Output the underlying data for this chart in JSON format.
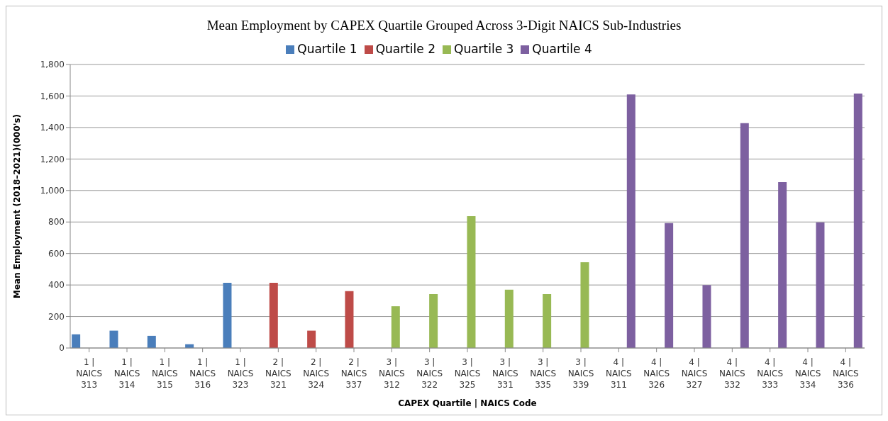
{
  "chart_data": {
    "type": "bar",
    "title": "Mean Employment by CAPEX Quartile Grouped Across 3-Digit NAICS Sub-Industries",
    "xlabel": "CAPEX Quartile | NAICS Code",
    "ylabel": "Mean Employment (2018–2021)(000's)",
    "categories": [
      "1 | NAICS 313",
      "1 | NAICS 314",
      "1 | NAICS 315",
      "1 | NAICS 316",
      "1 | NAICS 323",
      "2 | NAICS 321",
      "2 | NAICS 324",
      "2 | NAICS 337",
      "3 | NAICS 312",
      "3 | NAICS 322",
      "3 | NAICS 325",
      "3 | NAICS 331",
      "3 | NAICS 335",
      "3 | NAICS 339",
      "4 | NAICS 311",
      "4 | NAICS 326",
      "4 | NAICS 327",
      "4 | NAICS 332",
      "4 | NAICS 333",
      "4 | NAICS 334",
      "4 | NAICS 336"
    ],
    "series": [
      {
        "name": "Quartile 1",
        "color": "#4a7ebb",
        "values": [
          87,
          110,
          77,
          24,
          414,
          null,
          null,
          null,
          null,
          null,
          null,
          null,
          null,
          null,
          null,
          null,
          null,
          null,
          null,
          null,
          null
        ]
      },
      {
        "name": "Quartile 2",
        "color": "#be4b48",
        "values": [
          null,
          null,
          null,
          null,
          null,
          414,
          110,
          361,
          null,
          null,
          null,
          null,
          null,
          null,
          null,
          null,
          null,
          null,
          null,
          null,
          null
        ]
      },
      {
        "name": "Quartile 3",
        "color": "#98b954",
        "values": [
          null,
          null,
          null,
          null,
          null,
          null,
          null,
          null,
          265,
          342,
          837,
          370,
          342,
          544,
          null,
          null,
          null,
          null,
          null,
          null,
          null
        ]
      },
      {
        "name": "Quartile 4",
        "color": "#7d60a0",
        "values": [
          null,
          null,
          null,
          null,
          null,
          null,
          null,
          null,
          null,
          null,
          null,
          null,
          null,
          null,
          1610,
          793,
          399,
          1428,
          1053,
          798,
          1615
        ]
      }
    ],
    "ylim": [
      0,
      1800
    ],
    "yticks": [
      0,
      200,
      400,
      600,
      800,
      {
        "value": 1000,
        "label": "1,000"
      },
      {
        "value": 1200,
        "label": "1,200"
      },
      {
        "value": 1400,
        "label": "1,400"
      },
      {
        "value": 1600,
        "label": "1,600"
      },
      {
        "value": 1800,
        "label": "1,800"
      }
    ],
    "grid": "y",
    "legend": "top"
  }
}
